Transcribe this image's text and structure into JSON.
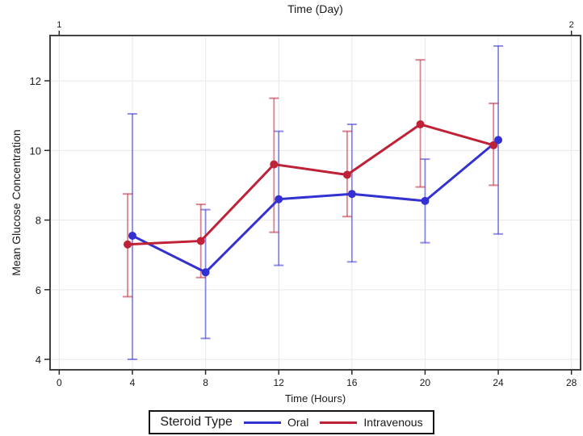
{
  "chart_data": {
    "type": "line",
    "title": "",
    "xlabel": "Time (Hours)",
    "ylabel": "Mean Glucose Concentration",
    "x_ticks": [
      0,
      4,
      8,
      12,
      16,
      20,
      24,
      28
    ],
    "y_ticks": [
      4,
      6,
      8,
      10,
      12
    ],
    "xlim": [
      -0.5,
      28.5
    ],
    "ylim": [
      3.7,
      13.3
    ],
    "grid": true,
    "top_axis": {
      "label": "Time (Day)",
      "ticks": [
        {
          "label": "1",
          "hour": 0
        },
        {
          "label": "2",
          "hour": 28
        }
      ]
    },
    "legend": {
      "position": "bottom",
      "title": "Steroid Type",
      "entries": [
        {
          "label": "Oral",
          "color": "#3431d3"
        },
        {
          "label": "Intravenous",
          "color": "#bf2136"
        }
      ]
    },
    "colors": {
      "grid": "#e8e8e8",
      "frame": "#424242",
      "tick": "#2a2a2a"
    },
    "series": [
      {
        "name": "Oral",
        "color": "#3431d3",
        "x_offset": 0,
        "points": [
          {
            "x": 4,
            "y": 7.55,
            "lo": 4.0,
            "hi": 11.05
          },
          {
            "x": 8,
            "y": 6.5,
            "lo": 4.6,
            "hi": 8.3
          },
          {
            "x": 12,
            "y": 8.6,
            "lo": 6.7,
            "hi": 10.55
          },
          {
            "x": 16,
            "y": 8.75,
            "lo": 6.8,
            "hi": 10.75
          },
          {
            "x": 20,
            "y": 8.55,
            "lo": 7.35,
            "hi": 9.75
          },
          {
            "x": 24,
            "y": 10.3,
            "lo": 7.6,
            "hi": 13.0
          }
        ]
      },
      {
        "name": "Intravenous",
        "color": "#bf2136",
        "x_offset": -0.26,
        "points": [
          {
            "x": 4,
            "y": 7.3,
            "lo": 5.8,
            "hi": 8.75
          },
          {
            "x": 8,
            "y": 7.4,
            "lo": 6.35,
            "hi": 8.45
          },
          {
            "x": 12,
            "y": 9.6,
            "lo": 7.65,
            "hi": 11.5
          },
          {
            "x": 16,
            "y": 9.3,
            "lo": 8.1,
            "hi": 10.55
          },
          {
            "x": 20,
            "y": 10.75,
            "lo": 8.95,
            "hi": 12.6
          },
          {
            "x": 24,
            "y": 10.15,
            "lo": 9.0,
            "hi": 11.35
          }
        ]
      }
    ]
  }
}
